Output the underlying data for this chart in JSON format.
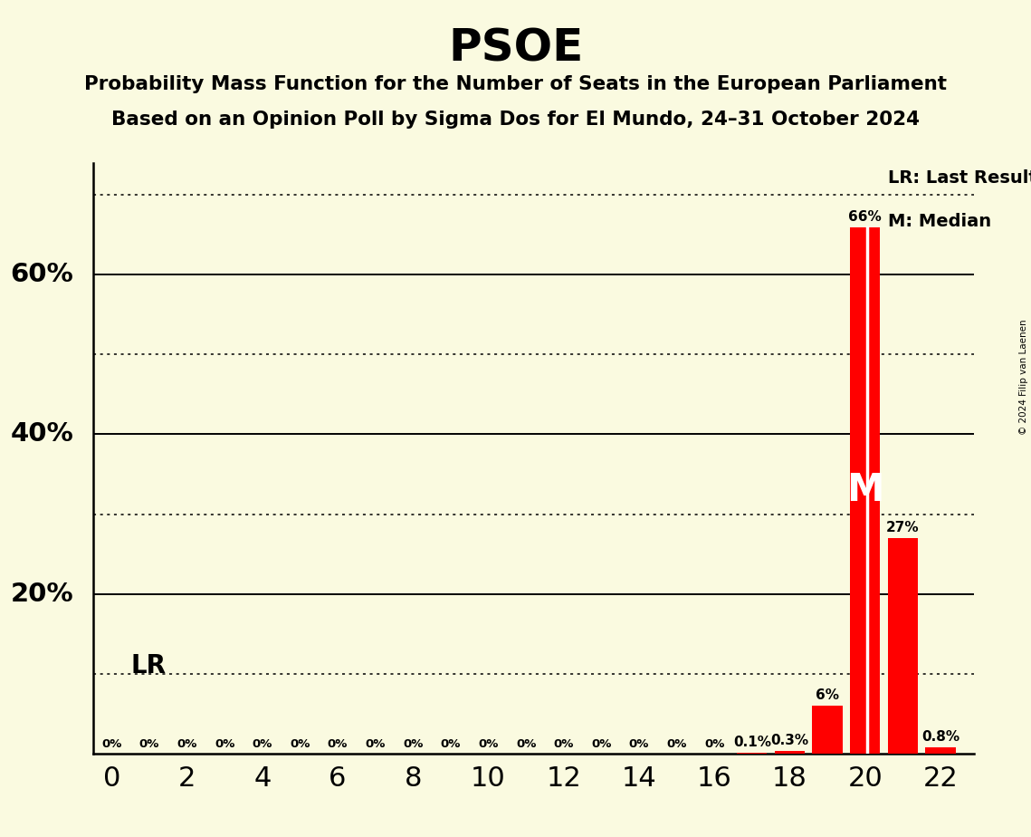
{
  "title": "PSOE",
  "subtitle1": "Probability Mass Function for the Number of Seats in the European Parliament",
  "subtitle2": "Based on an Opinion Poll by Sigma Dos for El Mundo, 24–31 October 2024",
  "copyright": "© 2024 Filip van Laenen",
  "seats": [
    0,
    1,
    2,
    3,
    4,
    5,
    6,
    7,
    8,
    9,
    10,
    11,
    12,
    13,
    14,
    15,
    16,
    17,
    18,
    19,
    20,
    21,
    22
  ],
  "probabilities": [
    0.0,
    0.0,
    0.0,
    0.0,
    0.0,
    0.0,
    0.0,
    0.0,
    0.0,
    0.0,
    0.0,
    0.0,
    0.0,
    0.0,
    0.0,
    0.0,
    0.0,
    0.001,
    0.003,
    0.06,
    0.66,
    0.27,
    0.008
  ],
  "seat_labels": [
    "0%",
    "0%",
    "0%",
    "0%",
    "0%",
    "0%",
    "0%",
    "0%",
    "0%",
    "0%",
    "0%",
    "0%",
    "0%",
    "0%",
    "0%",
    "0%",
    "0%",
    "0.1%",
    "0.3%",
    "6%",
    "66%",
    "27%",
    "0.8%"
  ],
  "bar_color": "#FF0000",
  "background_color": "#FAFAE0",
  "last_result_seat": 20,
  "median_seat": 20,
  "xlim": [
    -0.5,
    22.9
  ],
  "ylim": [
    0,
    0.74
  ],
  "xticks": [
    0,
    2,
    4,
    6,
    8,
    10,
    12,
    14,
    16,
    18,
    20,
    22
  ],
  "solid_gridlines": [
    0.2,
    0.4,
    0.6
  ],
  "dotted_gridlines": [
    0.1,
    0.3,
    0.5,
    0.7
  ],
  "ytick_positions": [
    0.2,
    0.4,
    0.6
  ],
  "ytick_labels": [
    "20%",
    "40%",
    "60%"
  ],
  "legend_lr_text": "LR: Last Result",
  "legend_m_text": "M: Median",
  "lr_label_text": "LR",
  "m_label_text": "M"
}
